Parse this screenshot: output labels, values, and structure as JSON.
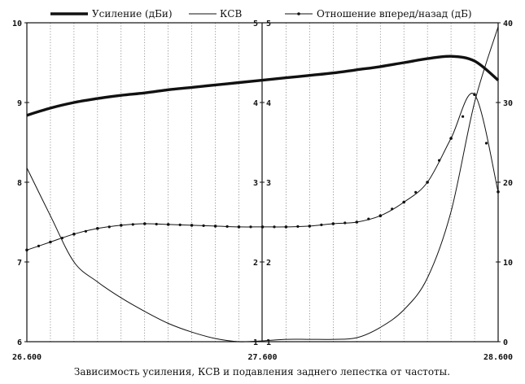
{
  "chart_data": {
    "type": "line",
    "caption": "Зависимость усиления, КСВ и подавления заднего лепестка от частоты.",
    "x": [
      26.6,
      26.7,
      26.8,
      26.9,
      27.0,
      27.1,
      27.2,
      27.3,
      27.4,
      27.5,
      27.6,
      27.7,
      27.8,
      27.9,
      28.0,
      28.1,
      28.2,
      28.3,
      28.4,
      28.5,
      28.6
    ],
    "xlim": [
      26.6,
      28.6
    ],
    "x_ticks": [
      "26.600",
      "27.600",
      "28.600"
    ],
    "axes": {
      "left": {
        "ylim": [
          6,
          10
        ],
        "ticks": [
          "6",
          "7",
          "8",
          "9",
          "10"
        ]
      },
      "middle": {
        "ylim": [
          1,
          5
        ],
        "ticks": [
          "1",
          "2",
          "3",
          "4",
          "5"
        ]
      },
      "right": {
        "ylim": [
          0,
          40
        ],
        "ticks": [
          "0",
          "10",
          "20",
          "30",
          "40"
        ]
      }
    },
    "grid": "vertical",
    "legend_position": "top",
    "series": [
      {
        "name": "Усиление (дБи)",
        "axis": "left",
        "style": "thick",
        "values": [
          8.84,
          8.93,
          9.0,
          9.05,
          9.09,
          9.12,
          9.16,
          9.19,
          9.22,
          9.25,
          9.28,
          9.31,
          9.34,
          9.37,
          9.41,
          9.45,
          9.5,
          9.55,
          9.58,
          9.52,
          9.28
        ]
      },
      {
        "name": "КСВ",
        "axis": "middle",
        "style": "thin",
        "values": [
          3.18,
          2.58,
          2.0,
          1.75,
          1.55,
          1.38,
          1.23,
          1.12,
          1.04,
          1.0,
          1.01,
          1.03,
          1.03,
          1.03,
          1.05,
          1.18,
          1.4,
          1.8,
          2.63,
          4.0,
          4.95
        ]
      },
      {
        "name": "Отношение вперед/назад (дБ)",
        "axis": "right",
        "style": "dotted",
        "values": [
          11.5,
          12.5,
          13.5,
          14.2,
          14.6,
          14.8,
          14.7,
          14.6,
          14.5,
          14.4,
          14.4,
          14.4,
          14.5,
          14.8,
          15.0,
          15.8,
          17.5,
          20.0,
          25.5,
          31.0,
          18.8
        ]
      }
    ]
  }
}
